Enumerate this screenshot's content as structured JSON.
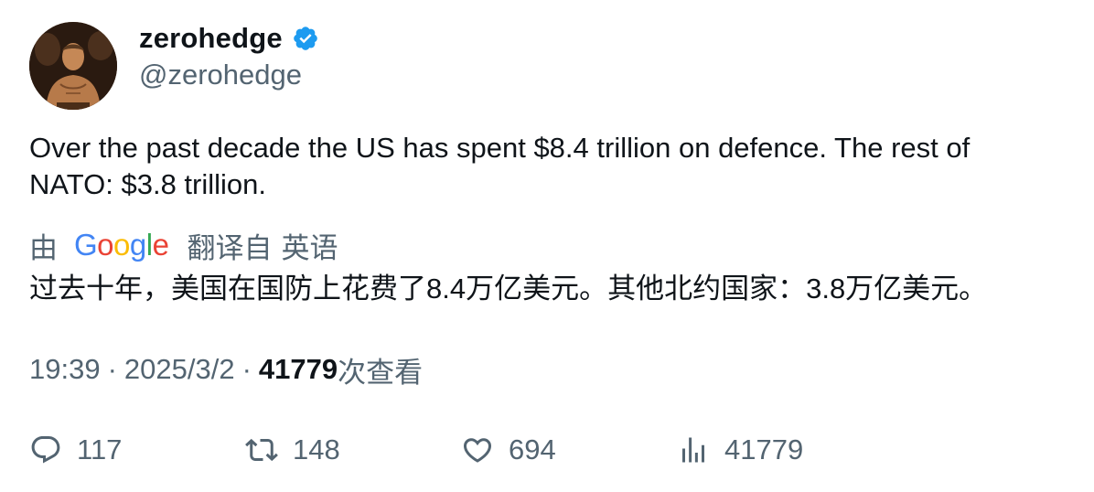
{
  "author": {
    "display_name": "zerohedge",
    "handle": "@zerohedge",
    "verified": true,
    "verified_color": "#1d9bf0"
  },
  "tweet": {
    "text": "Over the past decade the US has spent $8.4 trillion on defence. The rest of NATO: $3.8 trillion."
  },
  "translation": {
    "by_label": "由",
    "provider_letters": [
      "G",
      "o",
      "o",
      "g",
      "l",
      "e"
    ],
    "translated_from_label": "翻译自",
    "source_language": "英语",
    "text": "过去十年，美国在国防上花费了8.4万亿美元。其他北约国家：3.8万亿美元。"
  },
  "meta": {
    "time": "19:39",
    "separator": "·",
    "date": "2025/3/2",
    "views_count": "41779",
    "views_label": "次查看"
  },
  "actions": {
    "replies": "117",
    "retweets": "148",
    "likes": "694",
    "views": "41779"
  },
  "colors": {
    "text_primary": "#0f1419",
    "text_secondary": "#536471",
    "google_blue": "#4285f4",
    "google_red": "#ea4335",
    "google_yellow": "#fbbc05",
    "google_green": "#34a853"
  },
  "icons": {
    "reply": "speech-bubble-icon",
    "retweet": "retweet-arrows-icon",
    "like": "heart-icon",
    "views": "bar-chart-icon",
    "verified": "verified-badge-icon"
  }
}
